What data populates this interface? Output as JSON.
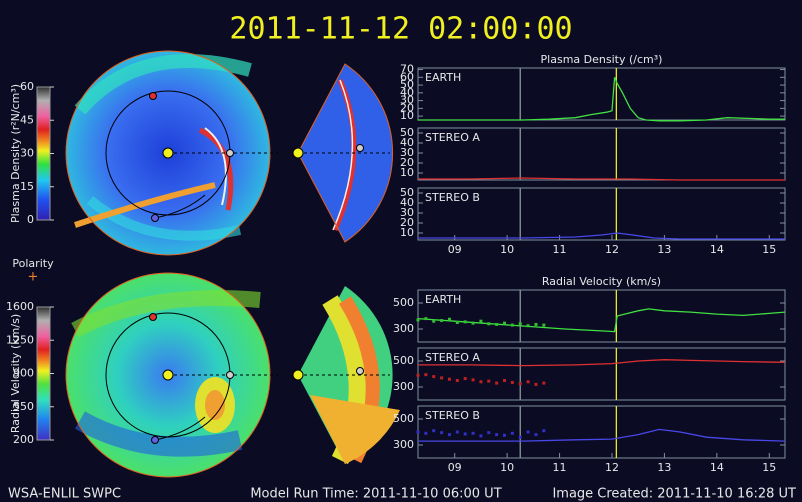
{
  "header": {
    "title": "2011-11-12  02:00:00"
  },
  "footer": {
    "left": "WSA-ENLIL SWPC",
    "center": "Model Run Time: 2011-11-10 06:00 UT",
    "right": "Image Created: 2011-11-10 16:28 UT"
  },
  "colorbars": [
    {
      "label": "Plasma Density (r²N/cm³)",
      "lim": [
        0,
        60
      ],
      "ticks": [
        0,
        15,
        30,
        45,
        60
      ]
    },
    {
      "label": "Radial Velocity (km/s)",
      "lim": [
        200,
        1600
      ],
      "ticks": [
        200,
        550,
        900,
        1250,
        1600
      ]
    }
  ],
  "polarity": {
    "label": "Polarity",
    "symbol": "+"
  },
  "chart_data": [
    {
      "type": "line",
      "title": "Plasma Density (/cm³)",
      "label": "EARTH",
      "xlim": [
        8.3,
        15.3
      ],
      "ylim": [
        5,
        72
      ],
      "yticks": [
        10,
        20,
        30,
        40,
        50,
        60,
        70
      ],
      "vlines": [
        {
          "x": 12.083,
          "color": "#e8e820"
        },
        {
          "x": 10.25,
          "color": "#8a9a9a"
        }
      ],
      "series": [
        {
          "color": "#40e040",
          "style": "line",
          "x": [
            8.3,
            8.8,
            9.3,
            9.8,
            10.3,
            10.8,
            11.3,
            11.6,
            11.9,
            12.0,
            12.05,
            12.1,
            12.2,
            12.35,
            12.5,
            12.65,
            12.9,
            13.3,
            13.8,
            14.2,
            14.6,
            15.0,
            15.3
          ],
          "values": [
            5,
            5,
            5,
            5,
            5,
            6,
            8,
            12,
            15,
            17,
            60,
            52,
            40,
            20,
            8,
            5,
            4,
            4,
            5,
            8,
            7,
            6,
            6
          ]
        }
      ]
    },
    {
      "type": "line",
      "label": "STEREO A",
      "xlim": [
        8.3,
        15.3
      ],
      "ylim": [
        3,
        55
      ],
      "yticks": [
        10,
        20,
        30,
        40,
        50
      ],
      "vlines": [
        {
          "x": 12.083,
          "color": "#e8e820"
        },
        {
          "x": 10.25,
          "color": "#8a9a9a"
        }
      ],
      "series": [
        {
          "color": "#e03030",
          "style": "line",
          "x": [
            8.3,
            9.3,
            10.3,
            11.3,
            12.3,
            13.3,
            14.3,
            15.3
          ],
          "values": [
            4,
            4,
            5,
            4,
            4,
            3,
            3,
            3
          ]
        }
      ]
    },
    {
      "type": "line",
      "label": "STEREO B",
      "xlim": [
        8.3,
        15.3
      ],
      "ylim": [
        3,
        55
      ],
      "yticks": [
        10,
        20,
        30,
        40,
        50
      ],
      "xticks": [
        {
          "value": 9,
          "label": "09"
        },
        {
          "value": 10,
          "label": "10"
        },
        {
          "value": 11,
          "label": "11"
        },
        {
          "value": 12,
          "label": "12"
        },
        {
          "value": 13,
          "label": "13"
        },
        {
          "value": 14,
          "label": "14"
        },
        {
          "value": 15,
          "label": "15"
        }
      ],
      "vlines": [
        {
          "x": 12.083,
          "color": "#e8e820"
        },
        {
          "x": 10.25,
          "color": "#8a9a9a"
        }
      ],
      "series": [
        {
          "color": "#4848e8",
          "style": "line",
          "x": [
            8.3,
            9.3,
            10.3,
            11.3,
            11.8,
            12.1,
            12.4,
            12.8,
            13.3,
            14.3,
            15.3
          ],
          "values": [
            5,
            5,
            5,
            6,
            8,
            10,
            8,
            5,
            4,
            4,
            4
          ]
        }
      ]
    },
    {
      "type": "line",
      "title": "Radial Velocity (km/s)",
      "label": "EARTH",
      "xlim": [
        8.3,
        15.3
      ],
      "ylim": [
        200,
        600
      ],
      "yticks": [
        300,
        500
      ],
      "vlines": [
        {
          "x": 12.083,
          "color": "#e8e820"
        },
        {
          "x": 10.25,
          "color": "#8a9a9a"
        }
      ],
      "series": [
        {
          "color": "#40e040",
          "style": "line",
          "x": [
            8.3,
            9.0,
            9.7,
            10.4,
            11.1,
            11.8,
            12.05,
            12.1,
            12.3,
            12.5,
            12.7,
            13.0,
            13.5,
            14.0,
            14.5,
            15.0,
            15.3
          ],
          "values": [
            380,
            360,
            340,
            320,
            300,
            285,
            280,
            400,
            420,
            440,
            455,
            440,
            430,
            415,
            405,
            420,
            430
          ]
        },
        {
          "color": "#30c030",
          "style": "dots",
          "x": [
            8.3,
            8.45,
            8.6,
            8.75,
            8.9,
            9.05,
            9.2,
            9.35,
            9.5,
            9.65,
            9.8,
            9.95,
            10.1,
            10.25,
            10.4,
            10.55,
            10.7
          ],
          "values": [
            370,
            380,
            360,
            365,
            375,
            350,
            355,
            345,
            360,
            340,
            335,
            345,
            330,
            340,
            325,
            335,
            330
          ]
        }
      ]
    },
    {
      "type": "line",
      "label": "STEREO A",
      "xlim": [
        8.3,
        15.3
      ],
      "ylim": [
        200,
        600
      ],
      "yticks": [
        300,
        500
      ],
      "vlines": [
        {
          "x": 12.083,
          "color": "#e8e820"
        },
        {
          "x": 10.25,
          "color": "#8a9a9a"
        }
      ],
      "series": [
        {
          "color": "#e03030",
          "style": "line",
          "x": [
            8.3,
            9.3,
            10.3,
            11.3,
            12.0,
            12.5,
            13.0,
            13.5,
            14.0,
            14.5,
            15.3
          ],
          "values": [
            470,
            470,
            465,
            470,
            480,
            500,
            510,
            505,
            500,
            495,
            490
          ]
        },
        {
          "color": "#c02020",
          "style": "dots",
          "x": [
            8.3,
            8.45,
            8.6,
            8.75,
            8.9,
            9.05,
            9.2,
            9.35,
            9.5,
            9.65,
            9.8,
            9.95,
            10.1,
            10.25,
            10.4,
            10.55,
            10.7
          ],
          "values": [
            390,
            395,
            380,
            370,
            360,
            350,
            365,
            355,
            340,
            345,
            330,
            350,
            335,
            325,
            340,
            320,
            330
          ]
        }
      ]
    },
    {
      "type": "line",
      "label": "STEREO B",
      "xlim": [
        8.3,
        15.3
      ],
      "ylim": [
        200,
        600
      ],
      "yticks": [
        300,
        500
      ],
      "xticks": [
        {
          "value": 9,
          "label": "09"
        },
        {
          "value": 10,
          "label": "10"
        },
        {
          "value": 11,
          "label": "11"
        },
        {
          "value": 12,
          "label": "12"
        },
        {
          "value": 13,
          "label": "13"
        },
        {
          "value": 14,
          "label": "14"
        },
        {
          "value": 15,
          "label": "15"
        }
      ],
      "vlines": [
        {
          "x": 12.083,
          "color": "#e8e820"
        },
        {
          "x": 10.25,
          "color": "#8a9a9a"
        }
      ],
      "series": [
        {
          "color": "#4848e8",
          "style": "line",
          "x": [
            8.3,
            9.3,
            10.3,
            11.3,
            12.0,
            12.5,
            12.9,
            13.3,
            13.8,
            14.5,
            15.3
          ],
          "values": [
            330,
            330,
            330,
            340,
            345,
            380,
            420,
            400,
            360,
            340,
            330
          ]
        },
        {
          "color": "#3030c8",
          "style": "dots",
          "x": [
            8.3,
            8.45,
            8.6,
            8.75,
            8.9,
            9.05,
            9.2,
            9.35,
            9.5,
            9.65,
            9.8,
            9.95,
            10.1,
            10.25,
            10.4,
            10.55,
            10.7
          ],
          "values": [
            400,
            390,
            410,
            395,
            380,
            400,
            385,
            390,
            370,
            395,
            380,
            375,
            390,
            360,
            400,
            380,
            410
          ]
        }
      ]
    }
  ]
}
